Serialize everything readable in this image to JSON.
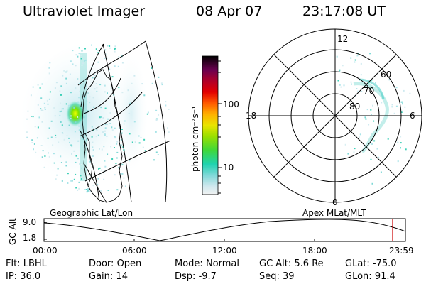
{
  "header": {
    "title": "Ultraviolet Imager",
    "date": "08 Apr 07",
    "time": "23:17:08 UT"
  },
  "colorbar": {
    "label": "photon cm⁻²s⁻¹",
    "ticks": [
      "100",
      "10"
    ]
  },
  "polar": {
    "hours": {
      "top": "12",
      "right": "6",
      "bottom": "0",
      "left": "18"
    },
    "latitudes": [
      "60",
      "70",
      "80"
    ]
  },
  "strip": {
    "ylabel": "GC Alt",
    "ymax": "9.0",
    "ymin": "1.8",
    "left_caption": "Geographic Lat/Lon",
    "right_caption": "Apex MLat/MLT",
    "xticks": [
      "00:00",
      "06:00",
      "12:00",
      "18:00",
      "23:59"
    ]
  },
  "footer": {
    "row1": [
      {
        "k": "Flt:",
        "v": "LBHL"
      },
      {
        "k": "Door:",
        "v": "Open"
      },
      {
        "k": "Mode:",
        "v": "Normal"
      },
      {
        "k": "GC Alt:",
        "v": "5.6 Re"
      },
      {
        "k": "GLat:",
        "v": "-75.0"
      }
    ],
    "row2": [
      {
        "k": "IP:",
        "v": "36.0"
      },
      {
        "k": "Gain:",
        "v": "14"
      },
      {
        "k": "Dsp:",
        "v": "-9.7"
      },
      {
        "k": "Seq:",
        "v": "39"
      },
      {
        "k": "GLon:",
        "v": "91.4"
      }
    ]
  },
  "colors": {
    "accent_cursor": "#cc0000",
    "colorbar_top": "#000000",
    "colorbar_bottom": "#f0f0f0"
  }
}
